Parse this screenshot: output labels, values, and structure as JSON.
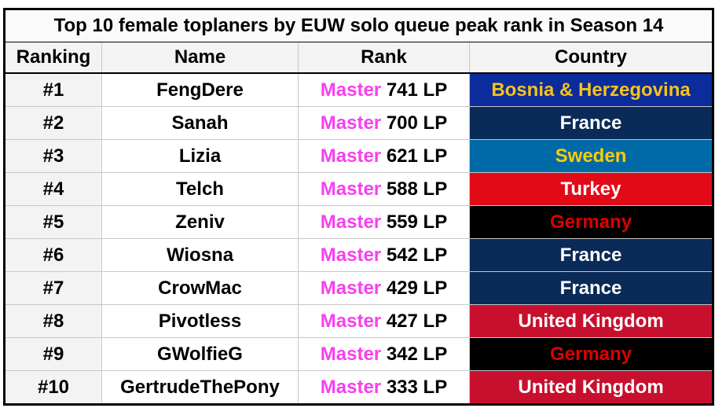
{
  "header": {
    "title": "Top 10 female toplaners by EUW solo queue peak rank in Season 14"
  },
  "table": {
    "columns": [
      "Ranking",
      "Name",
      "Rank",
      "Country"
    ],
    "rows": [
      {
        "ranking": "#1",
        "name": "FengDere",
        "tier": "Master",
        "lp": "741 LP",
        "country": "Bosnia & Herzegovina",
        "country_bg": "#0b2c9a",
        "country_color": "#f7c31a"
      },
      {
        "ranking": "#2",
        "name": "Sanah",
        "tier": "Master",
        "lp": "700 LP",
        "country": "France",
        "country_bg": "#0a2a57",
        "country_color": "#ffffff"
      },
      {
        "ranking": "#3",
        "name": "Lizia",
        "tier": "Master",
        "lp": "621 LP",
        "country": "Sweden",
        "country_bg": "#006aa7",
        "country_color": "#fecc00"
      },
      {
        "ranking": "#4",
        "name": "Telch",
        "tier": "Master",
        "lp": "588 LP",
        "country": "Turkey",
        "country_bg": "#e30a17",
        "country_color": "#ffffff"
      },
      {
        "ranking": "#5",
        "name": "Zeniv",
        "tier": "Master",
        "lp": "559 LP",
        "country": "Germany",
        "country_bg": "#000000",
        "country_color": "#dd0000"
      },
      {
        "ranking": "#6",
        "name": "Wiosna",
        "tier": "Master",
        "lp": "542 LP",
        "country": "France",
        "country_bg": "#0a2a57",
        "country_color": "#ffffff"
      },
      {
        "ranking": "#7",
        "name": "CrowMac",
        "tier": "Master",
        "lp": "429 LP",
        "country": "France",
        "country_bg": "#0a2a57",
        "country_color": "#ffffff"
      },
      {
        "ranking": "#8",
        "name": "Pivotless",
        "tier": "Master",
        "lp": "427 LP",
        "country": "United Kingdom",
        "country_bg": "#c8102e",
        "country_color": "#ffffff"
      },
      {
        "ranking": "#9",
        "name": "GWolfieG",
        "tier": "Master",
        "lp": "342 LP",
        "country": "Germany",
        "country_bg": "#000000",
        "country_color": "#dd0000"
      },
      {
        "ranking": "#10",
        "name": "GertrudeThePony",
        "tier": "Master",
        "lp": "333 LP",
        "country": "United Kingdom",
        "country_bg": "#c8102e",
        "country_color": "#ffffff"
      }
    ]
  }
}
